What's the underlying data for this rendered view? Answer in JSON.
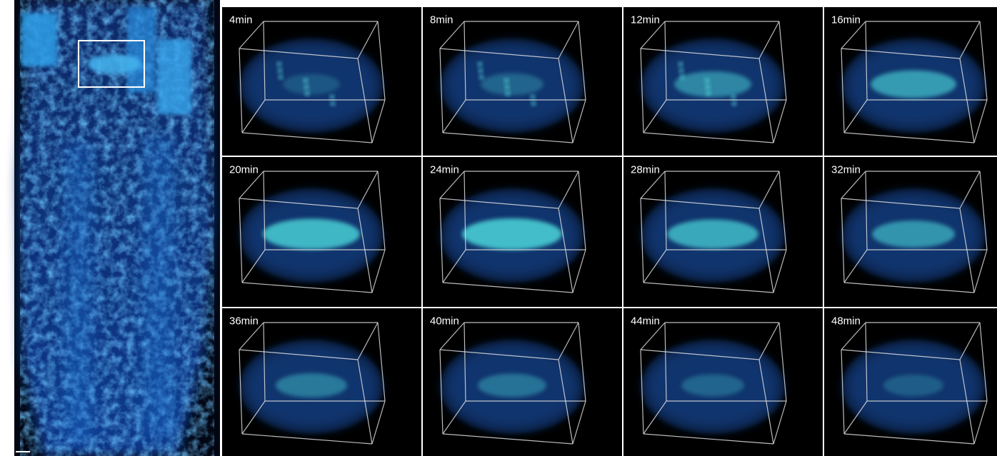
{
  "panels": [
    {
      "label": "4min"
    },
    {
      "label": "8min"
    },
    {
      "label": "12min"
    },
    {
      "label": "16min"
    },
    {
      "label": "20min"
    },
    {
      "label": "24min"
    },
    {
      "label": "28min"
    },
    {
      "label": "32min"
    },
    {
      "label": "36min"
    },
    {
      "label": "40min"
    },
    {
      "label": "44min"
    },
    {
      "label": "48min"
    }
  ]
}
